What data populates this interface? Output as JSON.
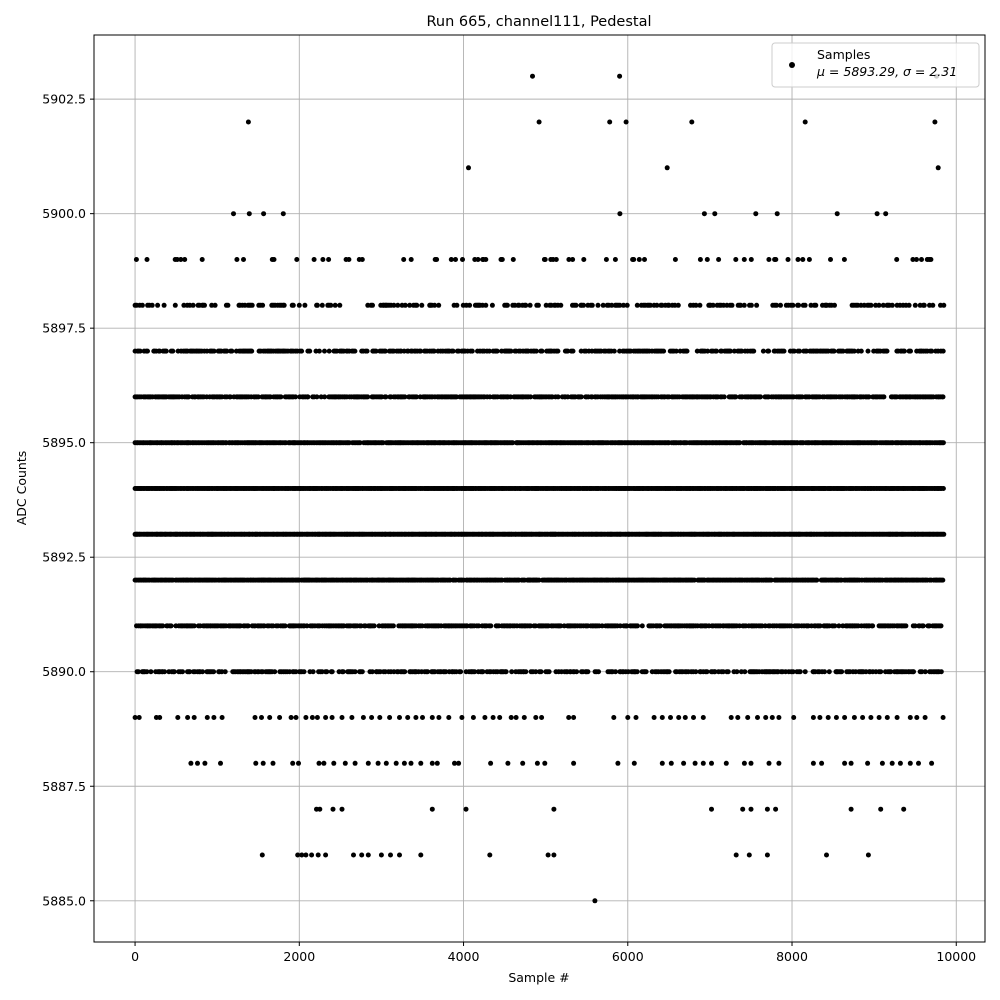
{
  "chart_data": {
    "type": "scatter",
    "title": "Run 665, channel111, Pedestal",
    "xlabel": "Sample #",
    "ylabel": "ADC Counts",
    "xlim": [
      -500,
      10350
    ],
    "ylim": [
      5884.1,
      5903.9
    ],
    "xticks": [
      0,
      2000,
      4000,
      6000,
      8000,
      10000
    ],
    "xtick_labels": [
      "0",
      "2000",
      "4000",
      "6000",
      "8000",
      "10000"
    ],
    "yticks": [
      5885.0,
      5887.5,
      5890.0,
      5892.5,
      5895.0,
      5897.5,
      5900.0,
      5902.5
    ],
    "ytick_labels": [
      "5885.0",
      "5887.5",
      "5890.0",
      "5892.5",
      "5895.0",
      "5897.5",
      "5900.0",
      "5902.5"
    ],
    "grid": true,
    "legend": {
      "position": "top-right",
      "entries": [
        {
          "name": "Samples",
          "stats": "μ = 5893.29, σ = 2.31"
        }
      ]
    },
    "marker_color": "#000000",
    "n_samples": 9850,
    "series": [
      {
        "name": "Samples",
        "levels": [
          {
            "y": 5885,
            "x": [
              5600
            ]
          },
          {
            "y": 5886,
            "x": [
              1550,
              1980,
              2030,
              2080,
              2150,
              2230,
              2320,
              2660,
              2760,
              2840,
              3000,
              3110,
              3220,
              3480,
              4320,
              5030,
              5100,
              7320,
              7480,
              7700,
              8420,
              8930
            ]
          },
          {
            "y": 5887,
            "x": [
              2210,
              2250,
              2410,
              2520,
              3620,
              4030,
              5100,
              7020,
              7400,
              7500,
              7700,
              7800,
              8720,
              9080,
              9360
            ]
          },
          {
            "y": 5888,
            "x": [
              680,
              760,
              850,
              1040,
              1470,
              1560,
              1680,
              1920,
              1990,
              2240,
              2300,
              2420,
              2560,
              2680,
              2840,
              2960,
              3060,
              3180,
              3280,
              3360,
              3480,
              3620,
              3680,
              3890,
              3940,
              4330,
              4540,
              4720,
              4900,
              4990,
              5340,
              5880,
              6080,
              6420,
              6530,
              6680,
              6820,
              6920,
              7020,
              7200,
              7420,
              7500,
              7720,
              7840,
              8260,
              8360,
              8640,
              8720,
              8920,
              9100,
              9220,
              9320,
              9440,
              9540,
              9700
            ]
          },
          {
            "y": 5889,
            "x": [
              0,
              50,
              260,
              300,
              520,
              640,
              720,
              880,
              960,
              1060,
              1460,
              1540,
              1640,
              1760,
              1900,
              1960,
              2080,
              2160,
              2220,
              2320,
              2400,
              2520,
              2640,
              2780,
              2880,
              2980,
              3100,
              3220,
              3320,
              3420,
              3500,
              3620,
              3700,
              3820,
              3980,
              4120,
              4260,
              4360,
              4440,
              4580,
              4640,
              4740,
              4880,
              4950,
              5280,
              5340,
              5830,
              6000,
              6100,
              6320,
              6420,
              6520,
              6620,
              6700,
              6800,
              6920,
              7260,
              7340,
              7460,
              7580,
              7680,
              7760,
              7840,
              8020,
              8260,
              8340,
              8440,
              8540,
              8640,
              8760,
              8860,
              8960,
              9060,
              9160,
              9280,
              9440,
              9520,
              9620,
              9840
            ]
          }
        ]
      }
    ]
  }
}
